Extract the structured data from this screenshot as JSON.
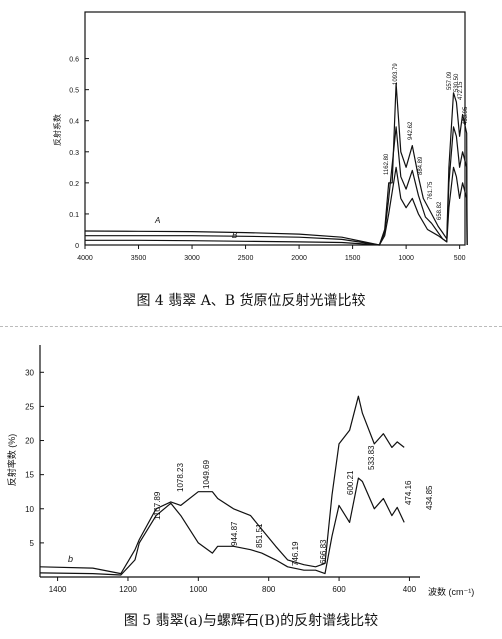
{
  "captions": {
    "fig4": "图 4 翡翠 A、B 货原位反射光谱比较",
    "fig5": "图 5 翡翠(a)与螺辉石(B)的反射谱线比较"
  },
  "chart_data": [
    {
      "type": "line",
      "ylabel": "反射系数",
      "xlabel": "",
      "x_ticks": [
        4000,
        3500,
        3000,
        2500,
        2000,
        1500,
        1000,
        500
      ],
      "y_ticks": [
        0,
        0.1,
        0.2,
        0.3,
        0.4,
        0.5,
        0.6
      ],
      "xlim": [
        4000,
        450
      ],
      "ylim": [
        0,
        0.75
      ],
      "x_reversed": true,
      "grid": false,
      "curve_labels": [
        "A",
        "B"
      ],
      "peak_labels": [
        "1093.79",
        "942.62",
        "1162.80",
        "884.89",
        "761.75",
        "658.82",
        "557.09",
        "530.50",
        "472.15",
        "433.95"
      ],
      "series": [
        {
          "name": "A",
          "points": [
            [
              4000,
              0.045
            ],
            [
              3500,
              0.044
            ],
            [
              3000,
              0.043
            ],
            [
              2500,
              0.04
            ],
            [
              2000,
              0.035
            ],
            [
              1600,
              0.025
            ],
            [
              1250,
              0.0
            ],
            [
              1200,
              0.05
            ],
            [
              1162.8,
              0.2
            ],
            [
              1130,
              0.2
            ],
            [
              1093.79,
              0.52
            ],
            [
              1050,
              0.3
            ],
            [
              1000,
              0.25
            ],
            [
              942.62,
              0.32
            ],
            [
              884.89,
              0.22
            ],
            [
              840,
              0.15
            ],
            [
              761.75,
              0.1
            ],
            [
              700,
              0.06
            ],
            [
              658.82,
              0.04
            ],
            [
              620,
              0.02
            ],
            [
              600,
              0.25
            ],
            [
              557.09,
              0.49
            ],
            [
              530.5,
              0.46
            ],
            [
              500,
              0.35
            ],
            [
              472.15,
              0.42
            ],
            [
              433.95,
              0.36
            ],
            [
              430,
              0.0
            ]
          ]
        },
        {
          "name": "B",
          "points": [
            [
              4000,
              0.03
            ],
            [
              3500,
              0.03
            ],
            [
              3000,
              0.03
            ],
            [
              2500,
              0.028
            ],
            [
              2000,
              0.025
            ],
            [
              1600,
              0.018
            ],
            [
              1250,
              0.0
            ],
            [
              1200,
              0.04
            ],
            [
              1162.8,
              0.15
            ],
            [
              1093.79,
              0.38
            ],
            [
              1050,
              0.22
            ],
            [
              1000,
              0.18
            ],
            [
              942.62,
              0.24
            ],
            [
              884.89,
              0.16
            ],
            [
              820,
              0.09
            ],
            [
              761.75,
              0.07
            ],
            [
              700,
              0.04
            ],
            [
              658.82,
              0.02
            ],
            [
              620,
              0.01
            ],
            [
              600,
              0.2
            ],
            [
              557.09,
              0.38
            ],
            [
              530.5,
              0.35
            ],
            [
              500,
              0.25
            ],
            [
              472.15,
              0.3
            ],
            [
              433.95,
              0.25
            ],
            [
              430,
              0.0
            ]
          ]
        },
        {
          "name": "",
          "points": [
            [
              4000,
              0.015
            ],
            [
              3500,
              0.015
            ],
            [
              3000,
              0.014
            ],
            [
              2500,
              0.012
            ],
            [
              2000,
              0.01
            ],
            [
              1600,
              0.008
            ],
            [
              1250,
              0.0
            ],
            [
              1200,
              0.03
            ],
            [
              1162.8,
              0.1
            ],
            [
              1093.79,
              0.25
            ],
            [
              1050,
              0.15
            ],
            [
              1000,
              0.12
            ],
            [
              942.62,
              0.15
            ],
            [
              884.89,
              0.1
            ],
            [
              800,
              0.05
            ],
            [
              700,
              0.03
            ],
            [
              620,
              0.01
            ],
            [
              600,
              0.12
            ],
            [
              557.09,
              0.25
            ],
            [
              530.5,
              0.22
            ],
            [
              500,
              0.15
            ],
            [
              472.15,
              0.2
            ],
            [
              433.95,
              0.15
            ],
            [
              430,
              0.0
            ]
          ]
        }
      ]
    },
    {
      "type": "line",
      "ylabel": "反射率数 (%)",
      "xlabel": "波数 (cm⁻¹)",
      "x_ticks": [
        1400,
        1200,
        1000,
        800,
        600,
        400
      ],
      "y_ticks": [
        5,
        10,
        15,
        20,
        25,
        30
      ],
      "xlim": [
        1450,
        370
      ],
      "ylim": [
        0,
        34
      ],
      "x_reversed": true,
      "grid": false,
      "curve_labels": [
        "b"
      ],
      "peak_labels": [
        "1167.89",
        "1078.23",
        "1049.69",
        "944.87",
        "851.51",
        "746.19",
        "666.83",
        "600.21",
        "533.83",
        "474.16",
        "434.85"
      ],
      "series": [
        {
          "name": "a",
          "points": [
            [
              1450,
              1.5
            ],
            [
              1300,
              1.3
            ],
            [
              1220,
              0.5
            ],
            [
              1180,
              4.0
            ],
            [
              1167.89,
              5.5
            ],
            [
              1120,
              10
            ],
            [
              1078.23,
              11
            ],
            [
              1049.69,
              10.5
            ],
            [
              1000,
              12.5
            ],
            [
              960,
              12.5
            ],
            [
              944.87,
              11.5
            ],
            [
              900,
              10
            ],
            [
              851.51,
              9.0
            ],
            [
              820,
              7.0
            ],
            [
              780,
              4.5
            ],
            [
              746.19,
              2.5
            ],
            [
              700,
              1.8
            ],
            [
              666.83,
              1.5
            ],
            [
              640,
              2.0
            ],
            [
              620,
              12
            ],
            [
              600.21,
              19.5
            ],
            [
              570,
              21.5
            ],
            [
              545,
              26.5
            ],
            [
              533.83,
              24
            ],
            [
              500,
              19.5
            ],
            [
              474.16,
              21
            ],
            [
              450,
              19
            ],
            [
              434.85,
              19.8
            ],
            [
              415,
              19
            ]
          ]
        },
        {
          "name": "b",
          "points": [
            [
              1450,
              0.6
            ],
            [
              1300,
              0.5
            ],
            [
              1220,
              0.3
            ],
            [
              1180,
              2.5
            ],
            [
              1167.89,
              5.0
            ],
            [
              1120,
              9.0
            ],
            [
              1078.23,
              10.8
            ],
            [
              1049.69,
              9.0
            ],
            [
              1000,
              5.0
            ],
            [
              960,
              3.5
            ],
            [
              944.87,
              4.5
            ],
            [
              900,
              4.5
            ],
            [
              851.51,
              4.0
            ],
            [
              820,
              3.5
            ],
            [
              780,
              2.5
            ],
            [
              746.19,
              1.5
            ],
            [
              700,
              1.0
            ],
            [
              666.83,
              1.0
            ],
            [
              640,
              0.5
            ],
            [
              620,
              6
            ],
            [
              600.21,
              10.5
            ],
            [
              570,
              8.0
            ],
            [
              545,
              14.5
            ],
            [
              533.83,
              14
            ],
            [
              500,
              10
            ],
            [
              474.16,
              11.5
            ],
            [
              450,
              9
            ],
            [
              434.85,
              10.2
            ],
            [
              415,
              8
            ]
          ]
        }
      ]
    }
  ]
}
